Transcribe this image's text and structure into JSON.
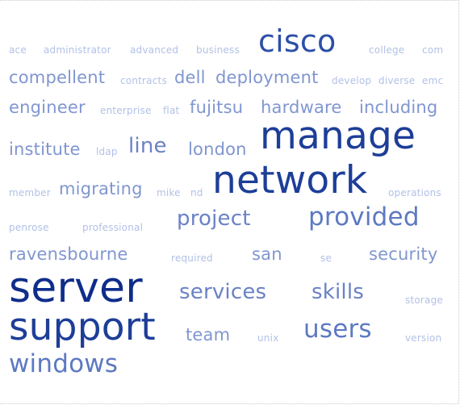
{
  "words": [
    {
      "text": "ace",
      "tier": 1
    },
    {
      "text": "administrator",
      "tier": 1
    },
    {
      "text": "advanced",
      "tier": 1
    },
    {
      "text": "business",
      "tier": 1
    },
    {
      "text": "cisco",
      "tier": 5
    },
    {
      "text": "college",
      "tier": 1
    },
    {
      "text": "com",
      "tier": 1
    },
    {
      "text": "compellent",
      "tier": 2
    },
    {
      "text": "contracts",
      "tier": 1
    },
    {
      "text": "dell",
      "tier": 2
    },
    {
      "text": "deployment",
      "tier": 2
    },
    {
      "text": "develop",
      "tier": 1
    },
    {
      "text": "diverse",
      "tier": 1
    },
    {
      "text": "emc",
      "tier": 1
    },
    {
      "text": "engineer",
      "tier": 2
    },
    {
      "text": "enterprise",
      "tier": 1
    },
    {
      "text": "flat",
      "tier": 1
    },
    {
      "text": "fujitsu",
      "tier": 2
    },
    {
      "text": "hardware",
      "tier": 2
    },
    {
      "text": "including",
      "tier": 2
    },
    {
      "text": "institute",
      "tier": 2
    },
    {
      "text": "ldap",
      "tier": 1
    },
    {
      "text": "line",
      "tier": 3
    },
    {
      "text": "london",
      "tier": 2
    },
    {
      "text": "manage",
      "tier": 6
    },
    {
      "text": "member",
      "tier": 1
    },
    {
      "text": "migrating",
      "tier": 2
    },
    {
      "text": "mike",
      "tier": 1
    },
    {
      "text": "nd",
      "tier": 1
    },
    {
      "text": "network",
      "tier": 6
    },
    {
      "text": "operations",
      "tier": 1
    },
    {
      "text": "penrose",
      "tier": 1
    },
    {
      "text": "professional",
      "tier": 1
    },
    {
      "text": "project",
      "tier": 3
    },
    {
      "text": "provided",
      "tier": 4
    },
    {
      "text": "ravensbourne",
      "tier": 2
    },
    {
      "text": "required",
      "tier": 1
    },
    {
      "text": "san",
      "tier": 2
    },
    {
      "text": "se",
      "tier": 1
    },
    {
      "text": "security",
      "tier": 2
    },
    {
      "text": "server",
      "tier": 7
    },
    {
      "text": "services",
      "tier": 3
    },
    {
      "text": "skills",
      "tier": 3
    },
    {
      "text": "storage",
      "tier": 1
    },
    {
      "text": "support",
      "tier": 6
    },
    {
      "text": "team",
      "tier": 2
    },
    {
      "text": "unix",
      "tier": 1
    },
    {
      "text": "users",
      "tier": 4
    },
    {
      "text": "version",
      "tier": 1
    },
    {
      "text": "windows",
      "tier": 4
    }
  ]
}
